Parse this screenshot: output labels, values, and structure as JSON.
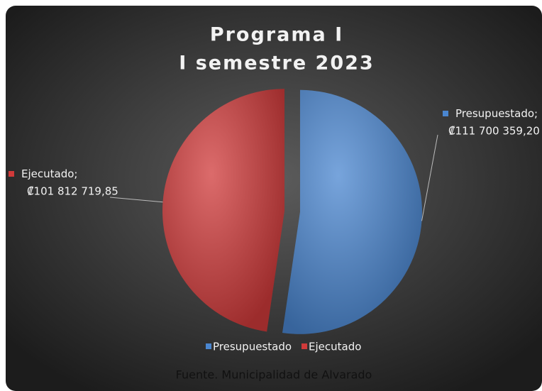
{
  "chart_data": {
    "type": "pie",
    "title": [
      "Programa I",
      "I semestre 2023"
    ],
    "categories": [
      "Presupuestado",
      "Ejecutado"
    ],
    "values": [
      111700359.2,
      101812719.85
    ],
    "value_labels": [
      "₡111 700 359,20",
      "₡101 812 719,85"
    ],
    "label_separator": ";",
    "colors": [
      "#4a86d0",
      "#d03a3a"
    ],
    "legend": "bottom",
    "source": "Fuente. Municipalidad de Alvarado"
  }
}
